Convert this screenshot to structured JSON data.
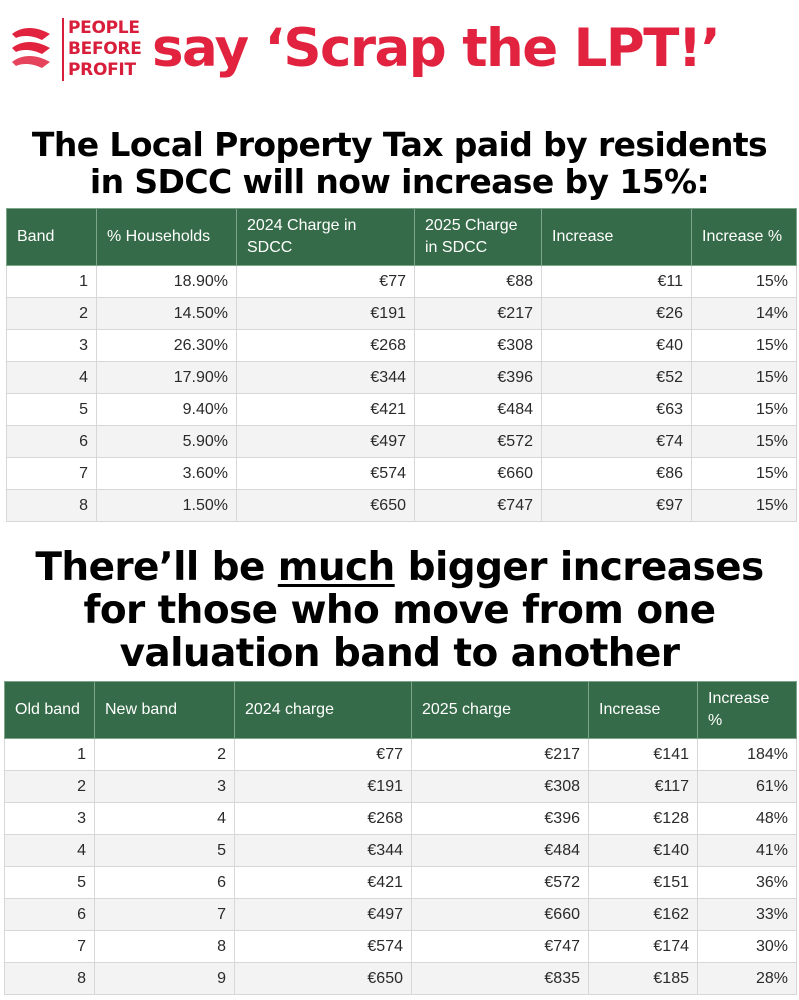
{
  "logo": {
    "lines": [
      "PEOPLE",
      "BEFORE",
      "PROFIT"
    ]
  },
  "slogan": "say ‘Scrap the LPT!’",
  "heading1": {
    "line1": "The Local Property Tax paid by residents",
    "line2": "in SDCC will now increase by 15%:"
  },
  "heading2": {
    "line1_pre": "There’ll be ",
    "line1_emph": "much",
    "line1_post": " bigger increases",
    "line2": "for those who move from one",
    "line3": "valuation band to another"
  },
  "colors": {
    "brand_red": "#e2233f",
    "table_header": "#356b48"
  },
  "table1": {
    "headers": [
      "Band",
      "% Households",
      "2024 Charge in SDCC",
      "2025 Charge in SDCC",
      "Increase",
      "Increase %"
    ],
    "rows": [
      [
        "1",
        "18.90%",
        "€77",
        "€88",
        "€11",
        "15%"
      ],
      [
        "2",
        "14.50%",
        "€191",
        "€217",
        "€26",
        "14%"
      ],
      [
        "3",
        "26.30%",
        "€268",
        "€308",
        "€40",
        "15%"
      ],
      [
        "4",
        "17.90%",
        "€344",
        "€396",
        "€52",
        "15%"
      ],
      [
        "5",
        "9.40%",
        "€421",
        "€484",
        "€63",
        "15%"
      ],
      [
        "6",
        "5.90%",
        "€497",
        "€572",
        "€74",
        "15%"
      ],
      [
        "7",
        "3.60%",
        "€574",
        "€660",
        "€86",
        "15%"
      ],
      [
        "8",
        "1.50%",
        "€650",
        "€747",
        "€97",
        "15%"
      ]
    ]
  },
  "table2": {
    "headers": [
      "Old band",
      "New band",
      "2024 charge",
      "2025 charge",
      "Increase",
      "Increase %"
    ],
    "rows": [
      [
        "1",
        "2",
        "€77",
        "€217",
        "€141",
        "184%"
      ],
      [
        "2",
        "3",
        "€191",
        "€308",
        "€117",
        "61%"
      ],
      [
        "3",
        "4",
        "€268",
        "€396",
        "€128",
        "48%"
      ],
      [
        "4",
        "5",
        "€344",
        "€484",
        "€140",
        "41%"
      ],
      [
        "5",
        "6",
        "€421",
        "€572",
        "€151",
        "36%"
      ],
      [
        "6",
        "7",
        "€497",
        "€660",
        "€162",
        "33%"
      ],
      [
        "7",
        "8",
        "€574",
        "€747",
        "€174",
        "30%"
      ],
      [
        "8",
        "9",
        "€650",
        "€835",
        "€185",
        "28%"
      ]
    ]
  }
}
